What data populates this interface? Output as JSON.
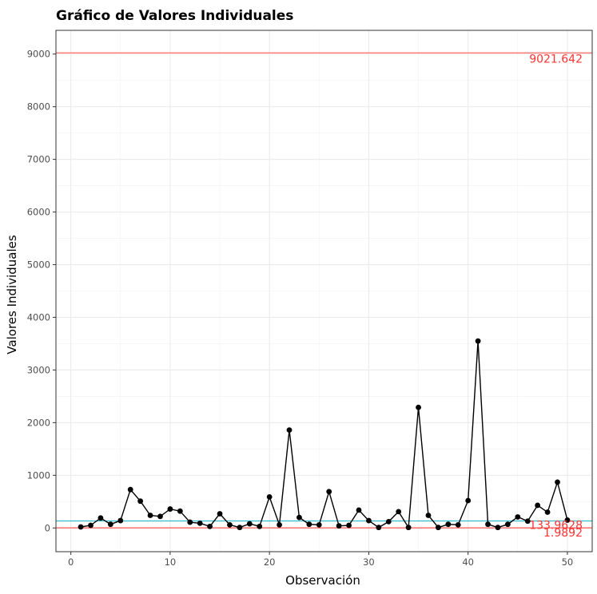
{
  "chart_data": {
    "type": "line",
    "title": "Gráfico de Valores Individuales",
    "xlabel": "Observación",
    "ylabel": "Valores Individuales",
    "xlim": [
      -1.5,
      52.5
    ],
    "ylim": [
      -450,
      9450
    ],
    "x_ticks": [
      0,
      10,
      20,
      30,
      40,
      50
    ],
    "x_minor_ticks": [
      5,
      15,
      25,
      35,
      45
    ],
    "y_ticks": [
      0,
      1000,
      2000,
      3000,
      4000,
      5000,
      6000,
      7000,
      8000,
      9000
    ],
    "y_minor_ticks": [
      500,
      1500,
      2500,
      3500,
      4500,
      5500,
      6500,
      7500,
      8500
    ],
    "grid": true,
    "colors": {
      "line": "#000000",
      "points": "#000000",
      "control_limits": "#ff6666",
      "center_line": "#33bbcc",
      "limit_labels": "#ff3333",
      "grid": "#ebebeb",
      "panel_border": "#333333"
    },
    "x": [
      1,
      2,
      3,
      4,
      5,
      6,
      7,
      8,
      9,
      10,
      11,
      12,
      13,
      14,
      15,
      16,
      17,
      18,
      19,
      20,
      21,
      22,
      23,
      24,
      25,
      26,
      27,
      28,
      29,
      30,
      31,
      32,
      33,
      34,
      35,
      36,
      37,
      38,
      39,
      40,
      41,
      42,
      43,
      44,
      45,
      46,
      47,
      48,
      49,
      50
    ],
    "values": [
      20,
      50,
      190,
      70,
      140,
      730,
      510,
      240,
      220,
      360,
      320,
      110,
      90,
      30,
      270,
      60,
      10,
      80,
      30,
      590,
      60,
      1860,
      200,
      70,
      60,
      690,
      40,
      50,
      340,
      140,
      10,
      120,
      310,
      10,
      2290,
      240,
      10,
      70,
      60,
      520,
      3550,
      70,
      10,
      70,
      210,
      130,
      430,
      300,
      870,
      150
    ],
    "reference_lines": [
      {
        "name": "UCL",
        "value": 9021.642,
        "label": "9021.642",
        "color": "#ff6666"
      },
      {
        "name": "CL",
        "value": 133.9628,
        "label": "133.9628",
        "color": "#33bbcc"
      },
      {
        "name": "LCL",
        "value": 1.9892,
        "label": "1.9892",
        "color": "#ff6666"
      }
    ]
  }
}
